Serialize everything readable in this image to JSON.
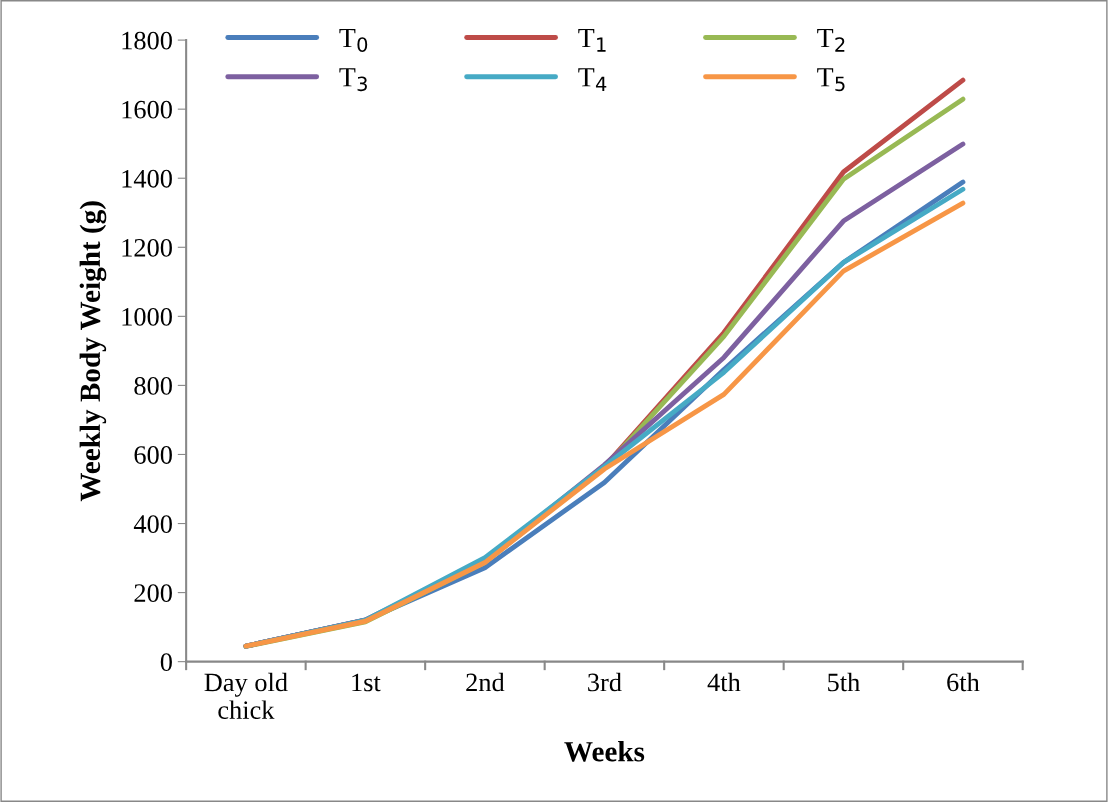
{
  "chart_data": {
    "type": "line",
    "xlabel": "Weeks",
    "ylabel": "Weekly Body Weight (g)",
    "categories": [
      "Day old\nchick",
      "1st",
      "2nd",
      "3rd",
      "4th",
      "5th",
      "6th"
    ],
    "series": [
      {
        "name": "T$_{0}$",
        "color": "#4a7ebb",
        "values": [
          45,
          120,
          272,
          519,
          846,
          1156,
          1389
        ]
      },
      {
        "name": "T$_{1}$",
        "color": "#be4b48",
        "values": [
          45,
          120,
          290,
          565,
          953,
          1418,
          1684
        ]
      },
      {
        "name": "T$_{2}$",
        "color": "#98b954",
        "values": [
          44,
          115,
          288,
          562,
          942,
          1397,
          1629
        ]
      },
      {
        "name": "T$_{3}$",
        "color": "#7d60a0",
        "values": [
          45,
          121,
          292,
          570,
          881,
          1276,
          1499
        ]
      },
      {
        "name": "T$_{4}$",
        "color": "#46aac5",
        "values": [
          45,
          120,
          301,
          565,
          838,
          1156,
          1368
        ]
      },
      {
        "name": "T$_{5}$",
        "color": "#f79646",
        "values": [
          45,
          117,
          287,
          558,
          774,
          1131,
          1328
        ]
      }
    ],
    "ylim": [
      0,
      1800
    ],
    "yticks": [
      0,
      200,
      400,
      600,
      800,
      1000,
      1200,
      1400,
      1600,
      1800
    ],
    "grid": false,
    "legend": "top",
    "marker": "none",
    "line_style": "solid"
  }
}
